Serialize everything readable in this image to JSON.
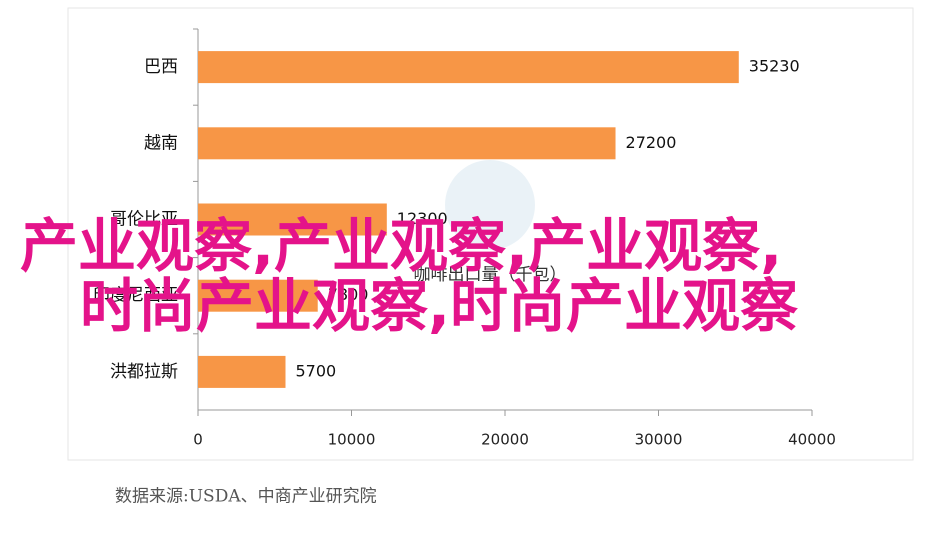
{
  "chart_data": {
    "type": "hbar",
    "subtitle": "咖啡出口量（千包）",
    "categories": [
      "巴西",
      "越南",
      "哥伦比亚",
      "印度尼西亚",
      "洪都拉斯"
    ],
    "values": [
      35230,
      27200,
      12300,
      7800,
      5700
    ],
    "color": "#f79646",
    "xlim": [
      0,
      40000
    ],
    "xticks": [
      0,
      10000,
      20000,
      30000,
      40000
    ],
    "source": "数据来源:USDA、中商产业研究院",
    "overlay": [
      "产业观察,产业观察,产业观察,",
      "时尚产业观察,时尚产业观察"
    ]
  }
}
